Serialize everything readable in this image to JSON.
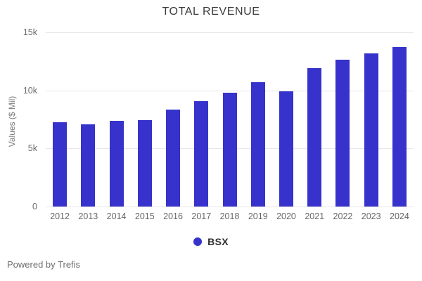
{
  "title": "TOTAL REVENUE",
  "footer": {
    "powered_by": "Powered by Trefis"
  },
  "legend": {
    "items": [
      {
        "label": "BSX",
        "color": "#3632cb"
      }
    ]
  },
  "colors": {
    "bar": "#3632cb",
    "gridline": "#e6e6e6",
    "title_text": "#3c3c3c",
    "axis_text": "#6b6b6b"
  },
  "chart_data": {
    "type": "bar",
    "title": "TOTAL REVENUE",
    "xlabel": "",
    "ylabel": "Values ($ Mil)",
    "categories": [
      "2012",
      "2013",
      "2014",
      "2015",
      "2016",
      "2017",
      "2018",
      "2019",
      "2020",
      "2021",
      "2022",
      "2023",
      "2024"
    ],
    "series": [
      {
        "name": "BSX",
        "values": [
          7250,
          7100,
          7350,
          7450,
          8350,
          9050,
          9800,
          10700,
          9900,
          11900,
          12650,
          13200,
          13750
        ]
      }
    ],
    "ylim": [
      0,
      15000
    ],
    "y_ticks": [
      {
        "value": 0,
        "label": "0"
      },
      {
        "value": 5000,
        "label": "5k"
      },
      {
        "value": 10000,
        "label": "10k"
      },
      {
        "value": 15000,
        "label": "15k"
      }
    ],
    "grid": true,
    "legend_position": "bottom",
    "bar_color": "#3632cb"
  }
}
